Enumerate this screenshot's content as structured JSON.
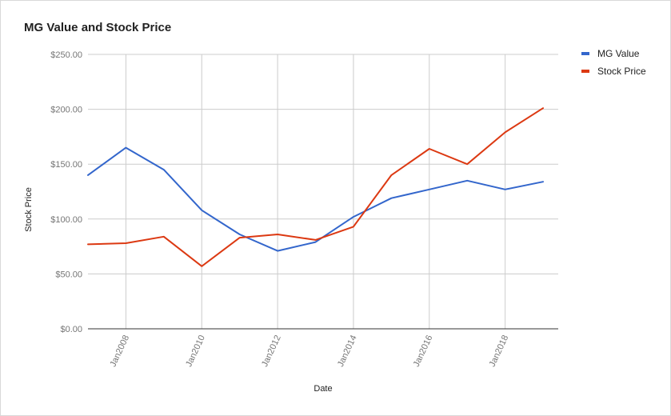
{
  "chart_data": {
    "type": "line",
    "title": "MG Value and Stock Price",
    "xlabel": "Date",
    "ylabel": "Stock Price",
    "x": [
      2007,
      2008,
      2009,
      2010,
      2011,
      2012,
      2013,
      2014,
      2015,
      2016,
      2017,
      2018,
      2019
    ],
    "x_ticks": [
      {
        "value": 2008,
        "label": "Jan2008"
      },
      {
        "value": 2010,
        "label": "Jan2010"
      },
      {
        "value": 2012,
        "label": "Jan2012"
      },
      {
        "value": 2014,
        "label": "Jan2014"
      },
      {
        "value": 2016,
        "label": "Jan2016"
      },
      {
        "value": 2018,
        "label": "Jan2018"
      }
    ],
    "xlim": [
      2007,
      2019.4
    ],
    "ylim": [
      0,
      250
    ],
    "y_ticks": [
      {
        "value": 0,
        "label": "$0.00"
      },
      {
        "value": 50,
        "label": "$50.00"
      },
      {
        "value": 100,
        "label": "$100.00"
      },
      {
        "value": 150,
        "label": "$150.00"
      },
      {
        "value": 200,
        "label": "$200.00"
      },
      {
        "value": 250,
        "label": "$250.00"
      }
    ],
    "grid": true,
    "legend_position": "right",
    "series": [
      {
        "name": "MG Value",
        "color": "#3366cc",
        "values": [
          140,
          165,
          145,
          108,
          86,
          71,
          79,
          102,
          119,
          127,
          135,
          127,
          134
        ]
      },
      {
        "name": "Stock Price",
        "color": "#dc3912",
        "values": [
          77,
          78,
          84,
          57,
          83,
          86,
          81,
          93,
          140,
          164,
          150,
          179,
          201
        ]
      }
    ]
  }
}
